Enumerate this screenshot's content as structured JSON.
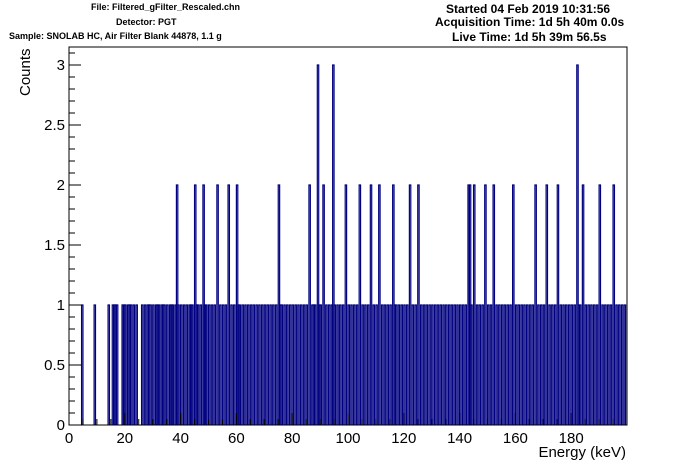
{
  "header": {
    "file": "File: Filtered_gFilter_Rescaled.chn",
    "detector": "Detector: PGT",
    "sample": "Sample: SNOLAB HC, Air Filter Blank 44878, 1.1 g",
    "started": "Started 04 Feb 2019 10:31:56",
    "acquisition": "Acquisition Time: 1d 5h 40m 0.0s",
    "live": "Live Time: 1d 5h 39m 56.5s"
  },
  "colors": {
    "series": "#000080",
    "axis": "#000000",
    "background": "#ffffff"
  },
  "chart_data": {
    "type": "histogram",
    "title": "",
    "xlabel": "Energy (keV)",
    "ylabel": "Counts",
    "xlim": [
      0,
      200
    ],
    "ylim": [
      0,
      3.15
    ],
    "grid": false,
    "legend": "none",
    "x_ticks": [
      0,
      20,
      40,
      60,
      80,
      100,
      120,
      140,
      160,
      180
    ],
    "x_tick_labels": [
      "0",
      "20",
      "40",
      "60",
      "80",
      "100",
      "120",
      "140",
      "160",
      "180"
    ],
    "y_ticks": [
      0,
      0.5,
      1,
      1.5,
      2,
      2.5,
      3
    ],
    "y_tick_labels": [
      "0",
      "0.5",
      "1",
      "1.5",
      "2",
      "2.5",
      "3"
    ],
    "bin_width_kev": 0.5,
    "nonzero_bins": [
      [
        4.5,
        1
      ],
      [
        9,
        1
      ],
      [
        14,
        1
      ],
      [
        15.5,
        1
      ],
      [
        16,
        1
      ],
      [
        16.5,
        1
      ],
      [
        17,
        1
      ],
      [
        19,
        1
      ],
      [
        19.5,
        1
      ],
      [
        20,
        1
      ],
      [
        21,
        1
      ],
      [
        21.5,
        1
      ],
      [
        22,
        1
      ],
      [
        23,
        1
      ],
      [
        24,
        1
      ],
      [
        26,
        1
      ],
      [
        27,
        1
      ],
      [
        28,
        1
      ],
      [
        28.5,
        1
      ],
      [
        29,
        1
      ],
      [
        30,
        1
      ],
      [
        31,
        1
      ],
      [
        31.5,
        1
      ],
      [
        32,
        1
      ],
      [
        33,
        1
      ],
      [
        33.5,
        1
      ],
      [
        34,
        1
      ],
      [
        35,
        1
      ],
      [
        36,
        1
      ],
      [
        36.5,
        1
      ],
      [
        37,
        1
      ],
      [
        38,
        1
      ],
      [
        38.5,
        2
      ],
      [
        39,
        1
      ],
      [
        40,
        1
      ],
      [
        41,
        1
      ],
      [
        42,
        1
      ],
      [
        43,
        1
      ],
      [
        43.5,
        1
      ],
      [
        44,
        1
      ],
      [
        45,
        2
      ],
      [
        45.5,
        1
      ],
      [
        46,
        1
      ],
      [
        47,
        1
      ],
      [
        48,
        2
      ],
      [
        48.5,
        1
      ],
      [
        49,
        1
      ],
      [
        50,
        1
      ],
      [
        51,
        1
      ],
      [
        52,
        1
      ],
      [
        53,
        2
      ],
      [
        54,
        1
      ],
      [
        55,
        1
      ],
      [
        56,
        1
      ],
      [
        57,
        2
      ],
      [
        58,
        1
      ],
      [
        59,
        1
      ],
      [
        60,
        2
      ],
      [
        60.5,
        1
      ],
      [
        61,
        1
      ],
      [
        62,
        1
      ],
      [
        63,
        1
      ],
      [
        64,
        1
      ],
      [
        65,
        1
      ],
      [
        66,
        1
      ],
      [
        67,
        1
      ],
      [
        68,
        1
      ],
      [
        69,
        1
      ],
      [
        70,
        1
      ],
      [
        71,
        1
      ],
      [
        72,
        1
      ],
      [
        73,
        1
      ],
      [
        74,
        1
      ],
      [
        75,
        2
      ],
      [
        75.5,
        1
      ],
      [
        76,
        1
      ],
      [
        77,
        1
      ],
      [
        78,
        1
      ],
      [
        79,
        1
      ],
      [
        80,
        1
      ],
      [
        81,
        1
      ],
      [
        82,
        1
      ],
      [
        83,
        1
      ],
      [
        84,
        1
      ],
      [
        85,
        1
      ],
      [
        86,
        2
      ],
      [
        87,
        1
      ],
      [
        87.5,
        1
      ],
      [
        88,
        1
      ],
      [
        89,
        3
      ],
      [
        89.5,
        1
      ],
      [
        90,
        1
      ],
      [
        91,
        2
      ],
      [
        92,
        1
      ],
      [
        93,
        1
      ],
      [
        94,
        1
      ],
      [
        94.5,
        3
      ],
      [
        95,
        1
      ],
      [
        96,
        1
      ],
      [
        97,
        1
      ],
      [
        98,
        1
      ],
      [
        99,
        2
      ],
      [
        100,
        1
      ],
      [
        101,
        1
      ],
      [
        102,
        1
      ],
      [
        103,
        1
      ],
      [
        104,
        2
      ],
      [
        105,
        1
      ],
      [
        106,
        1
      ],
      [
        107,
        1
      ],
      [
        108,
        2
      ],
      [
        109,
        1
      ],
      [
        110,
        1
      ],
      [
        111,
        2
      ],
      [
        112,
        1
      ],
      [
        113,
        1
      ],
      [
        114,
        1
      ],
      [
        115,
        1
      ],
      [
        116,
        2
      ],
      [
        116.5,
        1
      ],
      [
        117,
        1
      ],
      [
        118,
        1
      ],
      [
        119,
        1
      ],
      [
        120,
        1
      ],
      [
        121,
        1
      ],
      [
        122,
        2
      ],
      [
        123,
        1
      ],
      [
        124,
        1
      ],
      [
        125,
        2
      ],
      [
        126,
        1
      ],
      [
        127,
        1
      ],
      [
        128,
        1
      ],
      [
        129,
        1
      ],
      [
        130,
        1
      ],
      [
        131,
        1
      ],
      [
        132,
        1
      ],
      [
        133,
        1
      ],
      [
        134,
        1
      ],
      [
        135,
        1
      ],
      [
        136,
        1
      ],
      [
        137,
        1
      ],
      [
        138,
        1
      ],
      [
        139,
        1
      ],
      [
        140,
        1
      ],
      [
        141,
        1
      ],
      [
        142,
        1
      ],
      [
        143,
        2
      ],
      [
        143.5,
        2
      ],
      [
        144,
        1
      ],
      [
        145,
        2
      ],
      [
        146,
        1
      ],
      [
        147,
        1
      ],
      [
        148,
        1
      ],
      [
        149,
        2
      ],
      [
        150,
        1
      ],
      [
        151,
        1
      ],
      [
        152,
        2
      ],
      [
        153,
        1
      ],
      [
        154,
        1
      ],
      [
        155,
        1
      ],
      [
        156,
        1
      ],
      [
        157,
        1
      ],
      [
        158,
        1
      ],
      [
        159,
        2
      ],
      [
        160,
        1
      ],
      [
        161,
        1
      ],
      [
        162,
        1
      ],
      [
        163,
        1
      ],
      [
        164,
        1
      ],
      [
        165,
        1
      ],
      [
        166,
        1
      ],
      [
        167,
        2
      ],
      [
        168,
        1
      ],
      [
        169,
        1
      ],
      [
        170,
        1
      ],
      [
        171,
        2
      ],
      [
        172,
        1
      ],
      [
        173,
        1
      ],
      [
        174,
        1
      ],
      [
        175,
        2
      ],
      [
        176,
        1
      ],
      [
        177,
        1
      ],
      [
        178,
        1
      ],
      [
        179,
        1
      ],
      [
        180,
        1
      ],
      [
        181,
        1
      ],
      [
        182,
        3
      ],
      [
        182.5,
        1
      ],
      [
        183,
        1
      ],
      [
        184,
        2
      ],
      [
        185,
        1
      ],
      [
        186,
        1
      ],
      [
        187,
        1
      ],
      [
        188,
        1
      ],
      [
        189,
        1
      ],
      [
        190,
        2
      ],
      [
        191,
        1
      ],
      [
        192,
        1
      ],
      [
        193,
        1
      ],
      [
        194,
        1
      ],
      [
        195,
        2
      ],
      [
        196,
        1
      ],
      [
        197,
        1
      ],
      [
        198,
        1
      ],
      [
        199,
        1
      ]
    ]
  }
}
